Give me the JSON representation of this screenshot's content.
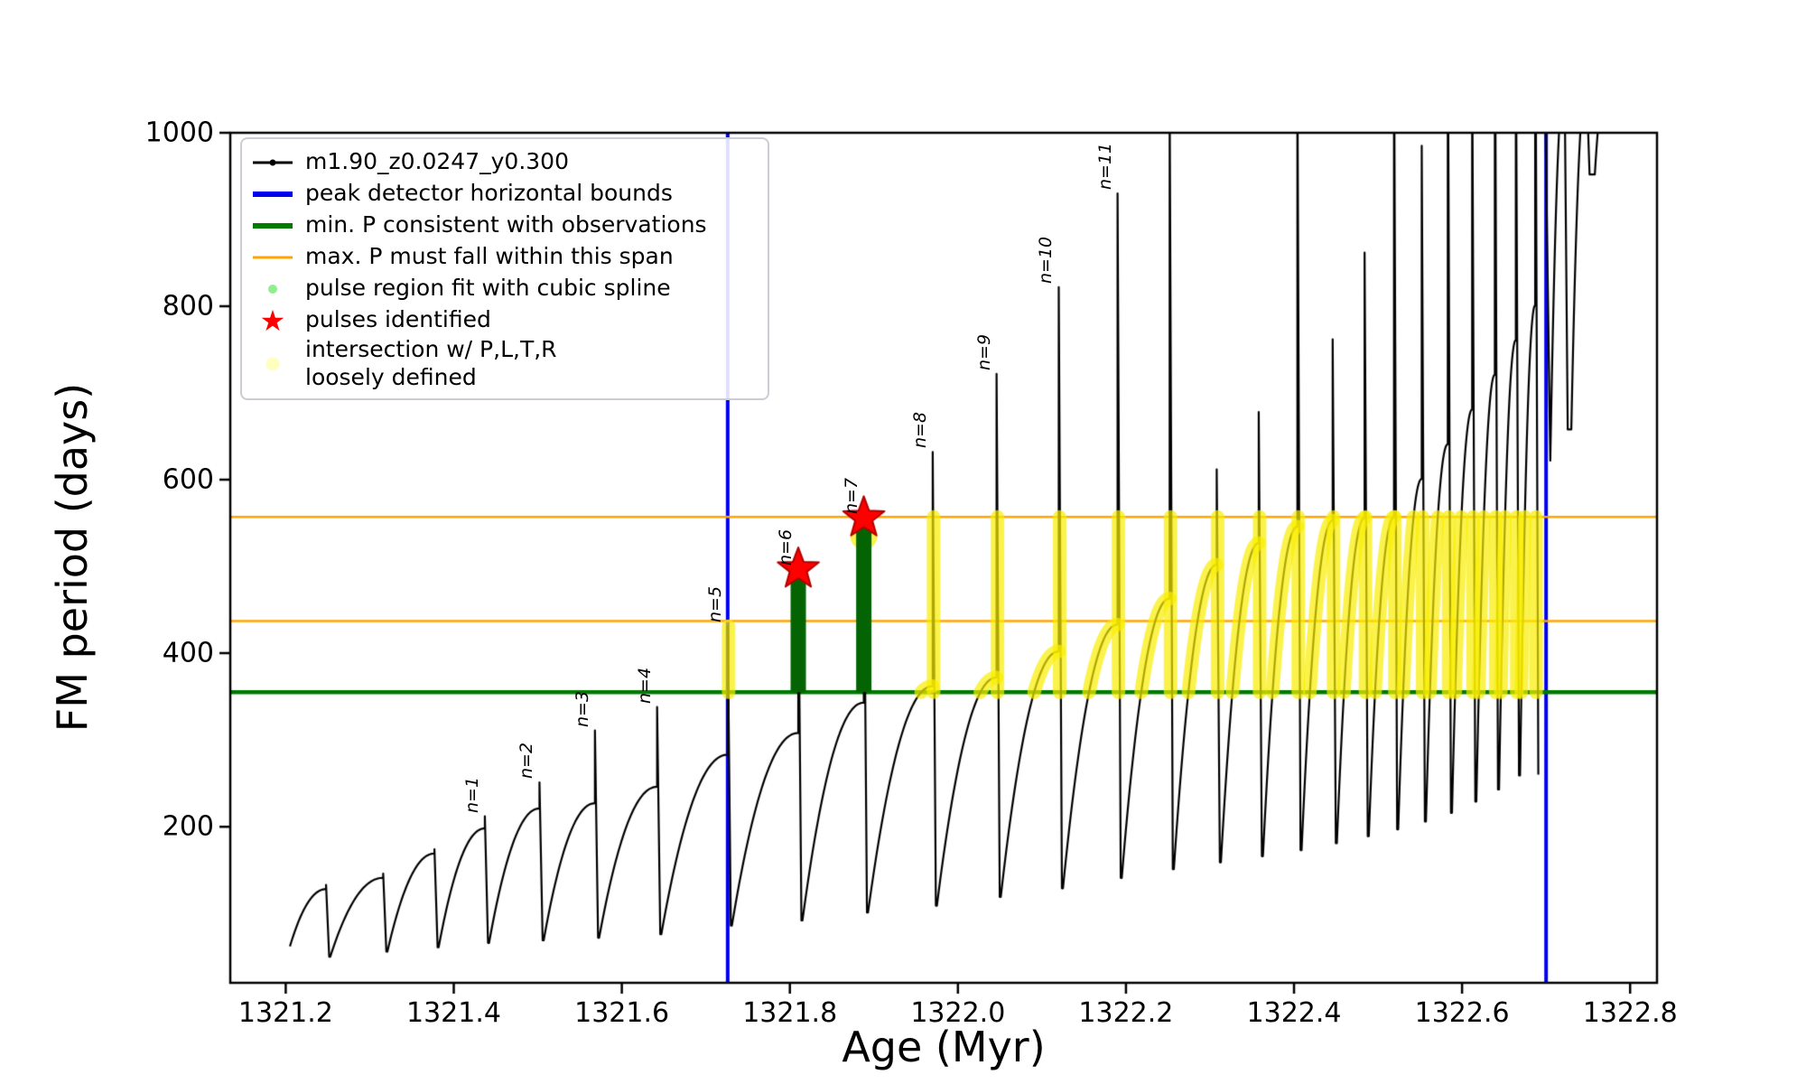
{
  "legend": {
    "items": [
      {
        "label": "m1.90_z0.0247_y0.300",
        "color": "#000000",
        "type": "line-dot",
        "dot_size": 7
      },
      {
        "label": "peak detector horizontal bounds",
        "color": "#0000ee",
        "type": "thick-line"
      },
      {
        "label": "min. P consistent with observations",
        "color": "#007a00",
        "type": "thick-line"
      },
      {
        "label": "max. P must fall within this span",
        "color": "#ffa500",
        "type": "line"
      },
      {
        "label": "pulse region fit with cubic spline",
        "color": "#90ee90",
        "type": "dot",
        "dot_size": 10
      },
      {
        "label": "pulses identified",
        "color": "#ff0000",
        "type": "star",
        "glyph": "★"
      },
      {
        "label": "intersection w/ P,L,T,R\nloosely defined",
        "color": "#ffffbf",
        "type": "dot",
        "dot_size": 15
      }
    ]
  },
  "chart_data": {
    "type": "line",
    "title": "",
    "xlabel": "Age (Myr)",
    "ylabel": "FM period (days)",
    "series_label": "m1.90_z0.0247_y0.300",
    "xlim": [
      1321.134,
      1322.832
    ],
    "ylim": [
      20,
      1000
    ],
    "xticks": [
      1321.2,
      1321.4,
      1321.6,
      1321.8,
      1322.0,
      1322.2,
      1322.4,
      1322.6,
      1322.8
    ],
    "yticks": [
      200,
      400,
      600,
      800,
      1000
    ],
    "grid": false,
    "legend_position": "upper left",
    "reference_lines": {
      "vertical_blue": [
        1321.726,
        1322.7
      ],
      "horizontal_green": 355,
      "horizontal_orange": [
        437,
        557
      ]
    },
    "pulses": [
      {
        "x0": 1321.205,
        "x1": 1321.248,
        "y0": 62,
        "ya": 128,
        "yp": 133
      },
      {
        "x0": 1321.253,
        "x1": 1321.316,
        "y0": 50,
        "ya": 141,
        "yp": 146
      },
      {
        "x0": 1321.321,
        "x1": 1321.377,
        "y0": 56,
        "ya": 169,
        "yp": 174
      },
      {
        "x0": 1321.382,
        "x1": 1321.437,
        "y0": 61,
        "ya": 198,
        "yp": 212,
        "label": "n=1"
      },
      {
        "x0": 1321.442,
        "x1": 1321.502,
        "y0": 66,
        "ya": 221,
        "yp": 251,
        "label": "n=2"
      },
      {
        "x0": 1321.507,
        "x1": 1321.568,
        "y0": 69,
        "ya": 227,
        "yp": 311,
        "label": "n=3"
      },
      {
        "x0": 1321.573,
        "x1": 1321.642,
        "y0": 72,
        "ya": 246,
        "yp": 338,
        "label": "n=4"
      },
      {
        "x0": 1321.647,
        "x1": 1321.726,
        "y0": 76,
        "ya": 283,
        "yp": 431,
        "label": "n=5",
        "band": true
      },
      {
        "x0": 1321.731,
        "x1": 1321.81,
        "y0": 86,
        "ya": 308,
        "yp": 497,
        "label": "n=6",
        "green": true
      },
      {
        "x0": 1321.815,
        "x1": 1321.888,
        "y0": 92,
        "ya": 343,
        "yp": 556,
        "label": "n=7",
        "green": true
      },
      {
        "x0": 1321.893,
        "x1": 1321.97,
        "y0": 101,
        "ya": 362,
        "yp": 632,
        "label": "n=8",
        "band": true
      },
      {
        "x0": 1321.975,
        "x1": 1322.046,
        "y0": 109,
        "ya": 372,
        "yp": 722,
        "label": "n=9",
        "band": true
      },
      {
        "x0": 1322.051,
        "x1": 1322.12,
        "y0": 119,
        "ya": 402,
        "yp": 822,
        "label": "n=10",
        "band": true
      },
      {
        "x0": 1322.125,
        "x1": 1322.19,
        "y0": 129,
        "ya": 433,
        "yp": 930,
        "label": "n=11",
        "band": true
      },
      {
        "x0": 1322.195,
        "x1": 1322.252,
        "y0": 141,
        "ya": 463,
        "yp": 1040,
        "band": true
      },
      {
        "x0": 1322.257,
        "x1": 1322.308,
        "y0": 151,
        "ya": 502,
        "yp": 612,
        "band": true
      },
      {
        "x0": 1322.313,
        "x1": 1322.358,
        "y0": 159,
        "ya": 527,
        "yp": 678,
        "band": true
      },
      {
        "x0": 1322.363,
        "x1": 1322.404,
        "y0": 166,
        "ya": 546,
        "yp": 1080,
        "band": true
      },
      {
        "x0": 1322.409,
        "x1": 1322.446,
        "y0": 173,
        "ya": 553,
        "yp": 762,
        "band": true
      },
      {
        "x0": 1322.451,
        "x1": 1322.484,
        "y0": 181,
        "ya": 556,
        "yp": 862,
        "band": true
      },
      {
        "x0": 1322.489,
        "x1": 1322.519,
        "y0": 189,
        "ya": 557,
        "yp": 1120,
        "band": true
      },
      {
        "x0": 1322.524,
        "x1": 1322.552,
        "y0": 197,
        "ya": 601,
        "yp": 985,
        "band": true
      },
      {
        "x0": 1322.557,
        "x1": 1322.583,
        "y0": 206,
        "ya": 641,
        "yp": 1160,
        "band": true
      },
      {
        "x0": 1322.588,
        "x1": 1322.612,
        "y0": 216,
        "ya": 681,
        "yp": 1100,
        "band": true
      },
      {
        "x0": 1322.617,
        "x1": 1322.639,
        "y0": 229,
        "ya": 721,
        "yp": 1200,
        "band": true
      },
      {
        "x0": 1322.644,
        "x1": 1322.664,
        "y0": 243,
        "ya": 761,
        "yp": 1140,
        "band": true
      },
      {
        "x0": 1322.669,
        "x1": 1322.687,
        "y0": 259,
        "ya": 801,
        "yp": 1240,
        "band": true,
        "drop_to": 260
      },
      {
        "x0": 1322.705,
        "x1": 1322.722,
        "y0": 622,
        "ya": 1060,
        "yp": 1060,
        "vshape": true
      },
      {
        "x0": 1322.73,
        "x1": 1322.748,
        "y0": 658,
        "ya": 1060,
        "yp": 1060
      },
      {
        "x0": 1322.758,
        "x1": 1322.772,
        "y0": 952,
        "ya": 1060,
        "yp": 1060
      }
    ],
    "stars": [
      {
        "x": 1321.81,
        "y": 497
      },
      {
        "x": 1321.888,
        "y": 556
      }
    ],
    "yellow_blob": {
      "x": 1321.888,
      "y": 535
    },
    "colors": {
      "track": "#000000",
      "bounds": "#0000f0",
      "min_p": "#007a00",
      "green_bar": "#046404",
      "max_p": "#ffa500",
      "pulse_star": "#ff0000",
      "intersection": "rgba(250,238,0,0.70)"
    }
  }
}
